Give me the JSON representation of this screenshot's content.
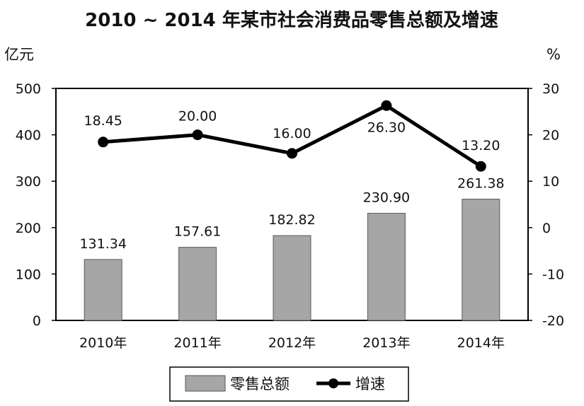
{
  "chart_data": {
    "type": "bar+line",
    "title": "2010 ~ 2014 年某市社会消费品零售总额及增速",
    "y_left_unit": "亿元",
    "y_right_unit": "%",
    "categories": [
      "2010年",
      "2011年",
      "2012年",
      "2013年",
      "2014年"
    ],
    "y_left_ticks": [
      "500",
      "400",
      "300",
      "200",
      "100",
      "0"
    ],
    "y_right_ticks": [
      "30",
      "20",
      "10",
      "0",
      "-10",
      "-20"
    ],
    "y_left_range": [
      0,
      500
    ],
    "y_right_range": [
      -20,
      30
    ],
    "series": [
      {
        "name": "零售总额",
        "type": "bar",
        "axis": "left",
        "values": [
          131.34,
          157.61,
          182.82,
          230.9,
          261.38
        ],
        "labels": [
          "131.34",
          "157.61",
          "182.82",
          "230.90",
          "261.38"
        ],
        "color": "#a6a6a6"
      },
      {
        "name": "增速",
        "type": "line",
        "axis": "right",
        "values": [
          18.45,
          20.0,
          16.0,
          26.3,
          13.2
        ],
        "labels": [
          "18.45",
          "20.00",
          "16.00",
          "26.30",
          "13.20"
        ],
        "color": "#000000"
      }
    ],
    "grid": false,
    "legend_position": "bottom"
  }
}
